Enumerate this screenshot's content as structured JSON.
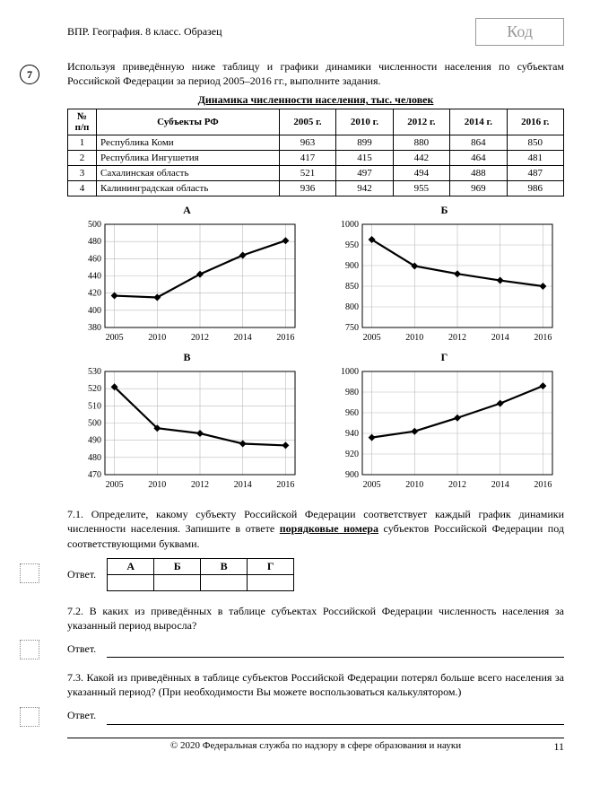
{
  "header": {
    "left": "ВПР. География. 8 класс. Образец",
    "code": "Код"
  },
  "question_number": "7",
  "intro": "Используя приведённую ниже таблицу и графики динамики численности населения по субъектам Российской Федерации за период 2005–2016 гг., выполните задания.",
  "table_title": "Динамика численности населения, тыс. человек",
  "columns": [
    "№ п/п",
    "Субъекты РФ",
    "2005 г.",
    "2010 г.",
    "2012 г.",
    "2014 г.",
    "2016 г."
  ],
  "rows": [
    [
      "1",
      "Республика Коми",
      "963",
      "899",
      "880",
      "864",
      "850"
    ],
    [
      "2",
      "Республика Ингушетия",
      "417",
      "415",
      "442",
      "464",
      "481"
    ],
    [
      "3",
      "Сахалинская область",
      "521",
      "497",
      "494",
      "488",
      "487"
    ],
    [
      "4",
      "Калининградская область",
      "936",
      "942",
      "955",
      "969",
      "986"
    ]
  ],
  "charts": {
    "years": [
      2005,
      2010,
      2012,
      2014,
      2016
    ],
    "A": {
      "label": "А",
      "ymin": 380,
      "ymax": 500,
      "ystep": 20,
      "values": [
        417,
        415,
        442,
        464,
        481
      ]
    },
    "B": {
      "label": "Б",
      "ymin": 750,
      "ymax": 1000,
      "ystep": 50,
      "values": [
        963,
        899,
        880,
        864,
        850
      ]
    },
    "V": {
      "label": "В",
      "ymin": 470,
      "ymax": 530,
      "ystep": 10,
      "values": [
        521,
        497,
        494,
        488,
        487
      ]
    },
    "G": {
      "label": "Г",
      "ymin": 900,
      "ymax": 1000,
      "ystep": 20,
      "values": [
        936,
        942,
        955,
        969,
        986
      ]
    },
    "line_color": "#000000",
    "grid_color": "#bbbbbb",
    "axis_color": "#000000",
    "marker_fill": "#000000"
  },
  "q71": {
    "text_before": "7.1.  Определите, какому субъекту Российской Федерации соответствует каждый график динамики численности населения. Запишите в ответе ",
    "emph": "порядковые номера",
    "text_after": " субъектов Российской Федерации под соответствующими буквами.",
    "answer_label": "Ответ.",
    "headers": [
      "А",
      "Б",
      "В",
      "Г"
    ]
  },
  "q72": {
    "text": "7.2.  В каких из приведённых в таблице субъектах Российской Федерации численность населения за указанный период выросла?",
    "answer_label": "Ответ."
  },
  "q73": {
    "text": "7.3.  Какой из приведённых в таблице субъектов Российской Федерации потерял больше всего населения за указанный период? (При необходимости Вы можете воспользоваться калькулятором.)",
    "answer_label": "Ответ."
  },
  "footer": "© 2020 Федеральная служба по надзору в сфере образования и науки",
  "page": "11"
}
